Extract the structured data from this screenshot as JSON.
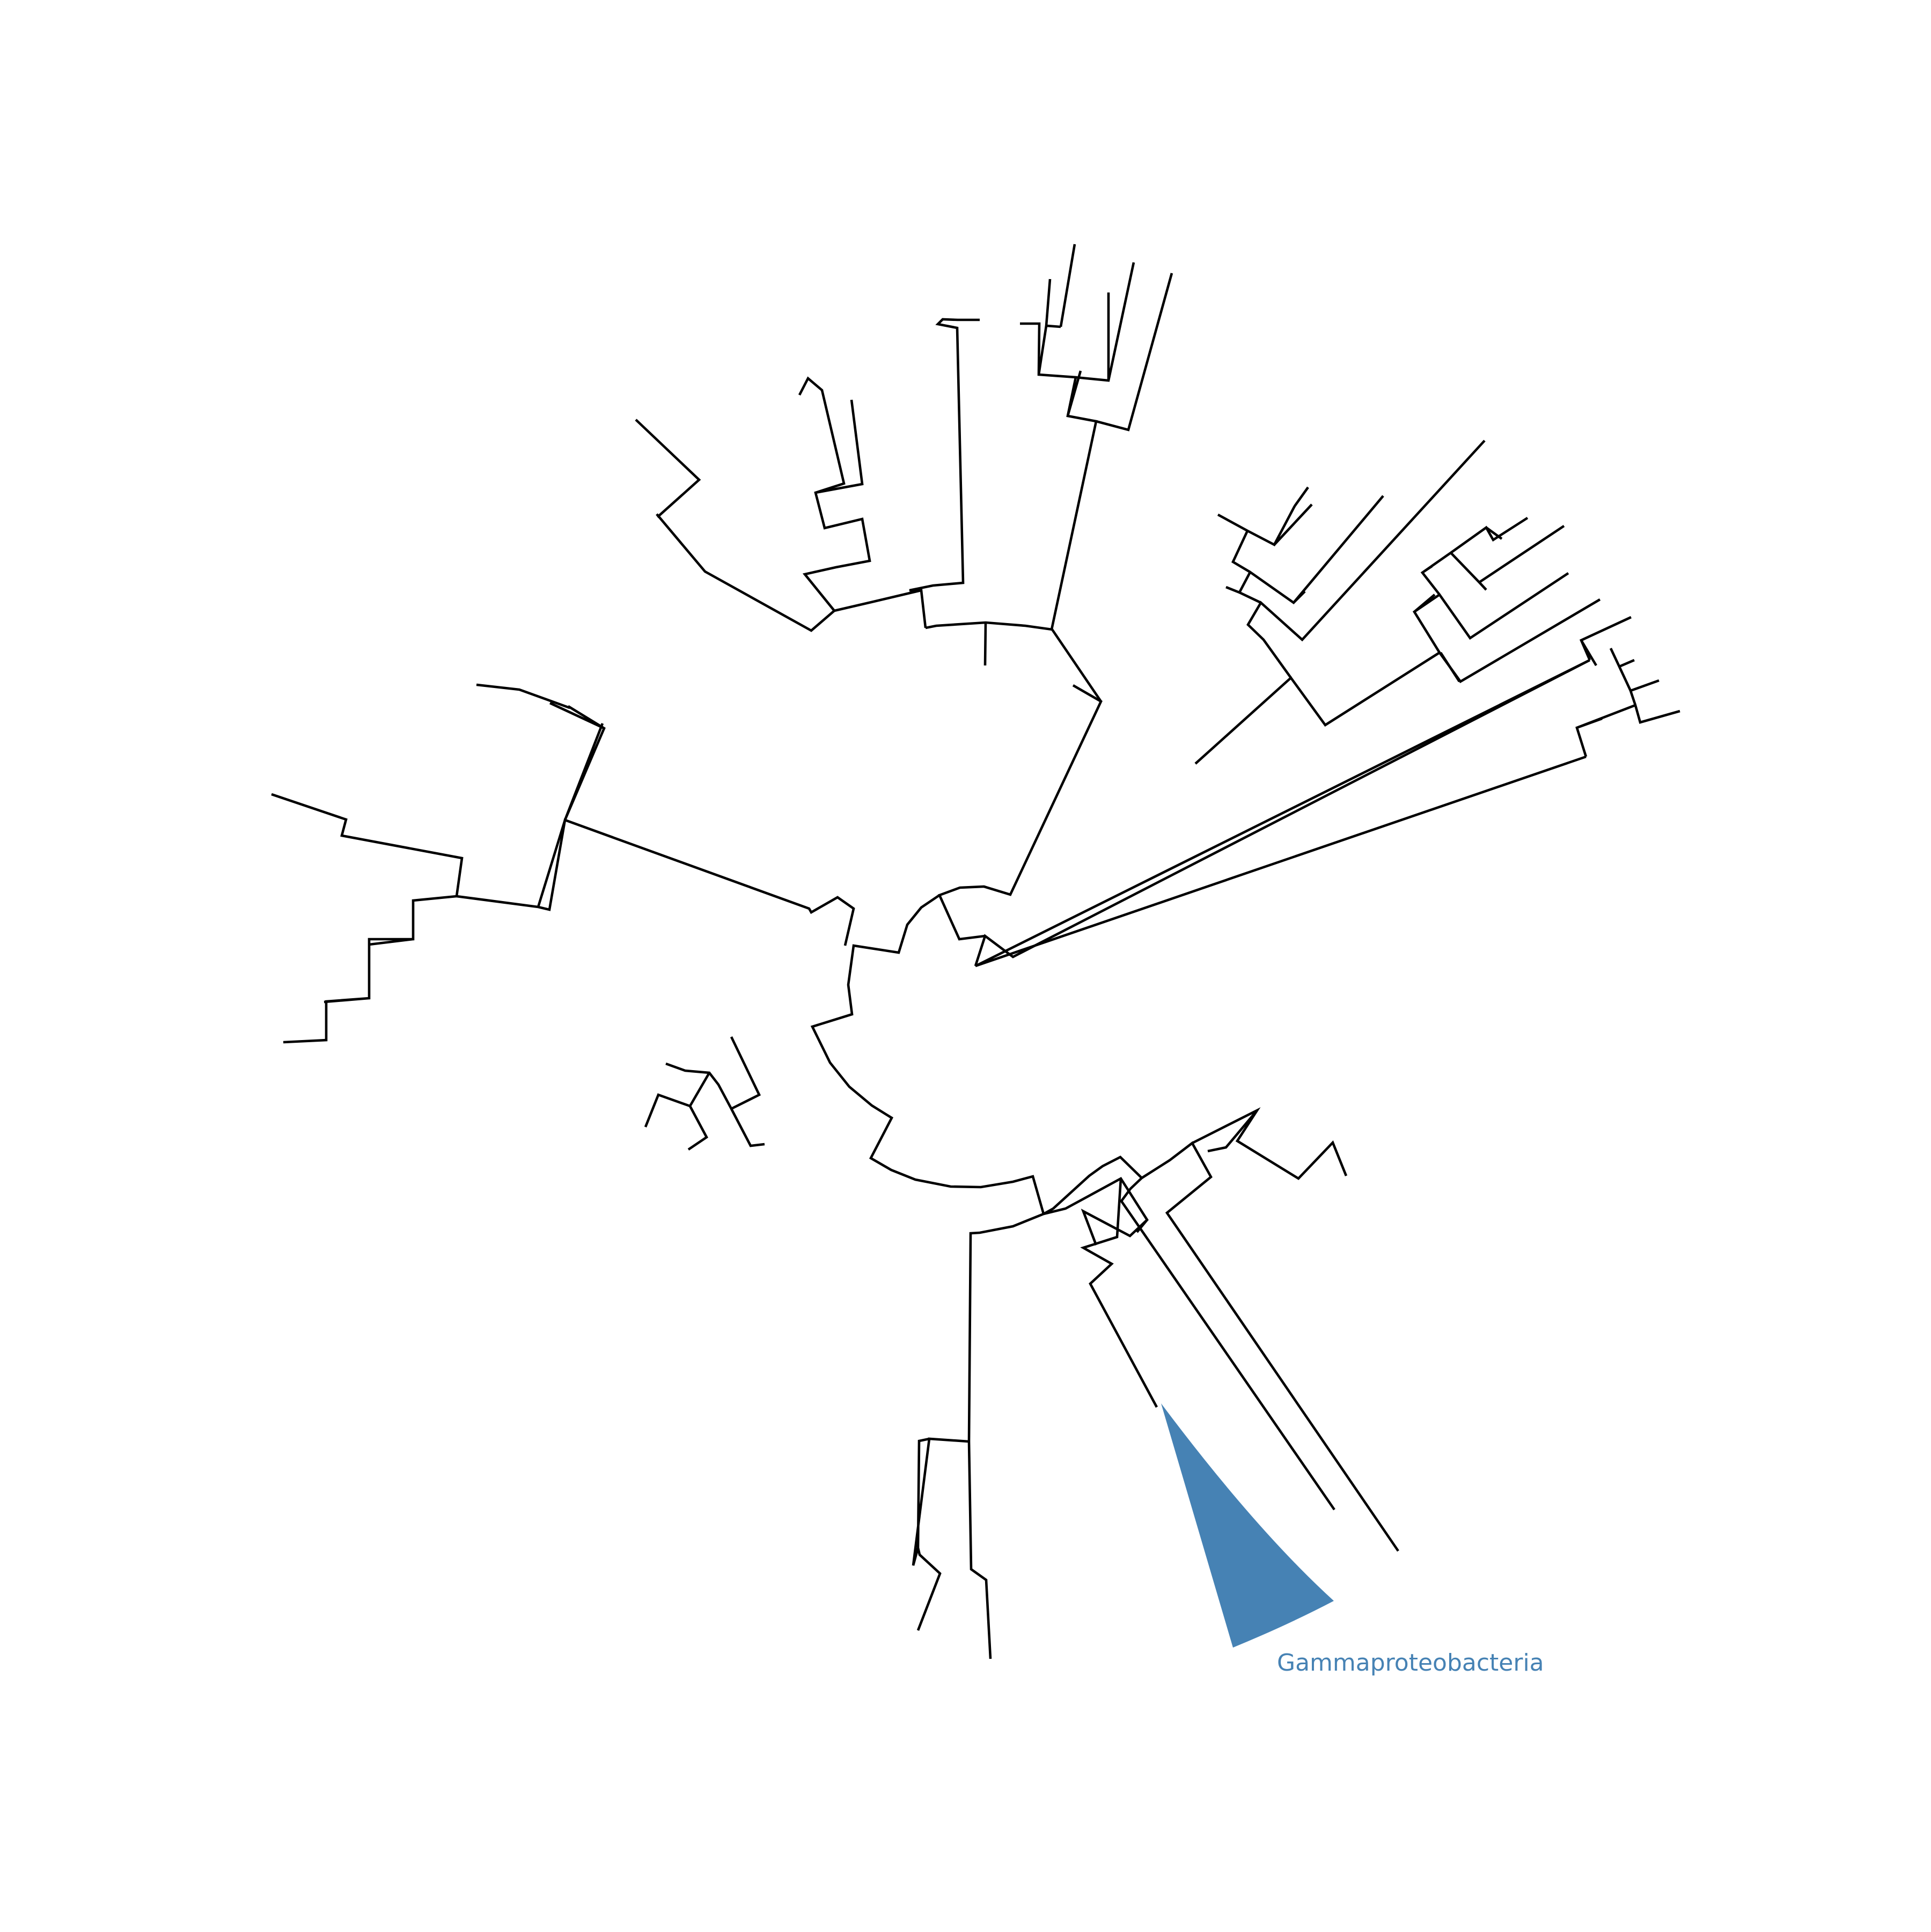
{
  "figure": {
    "type": "circular phylogenetic tree",
    "line_color": "#000000",
    "background": "#ffffff"
  },
  "collapsed_clade": {
    "label": "Gammaproteobacteria",
    "color": "#4682b4"
  }
}
